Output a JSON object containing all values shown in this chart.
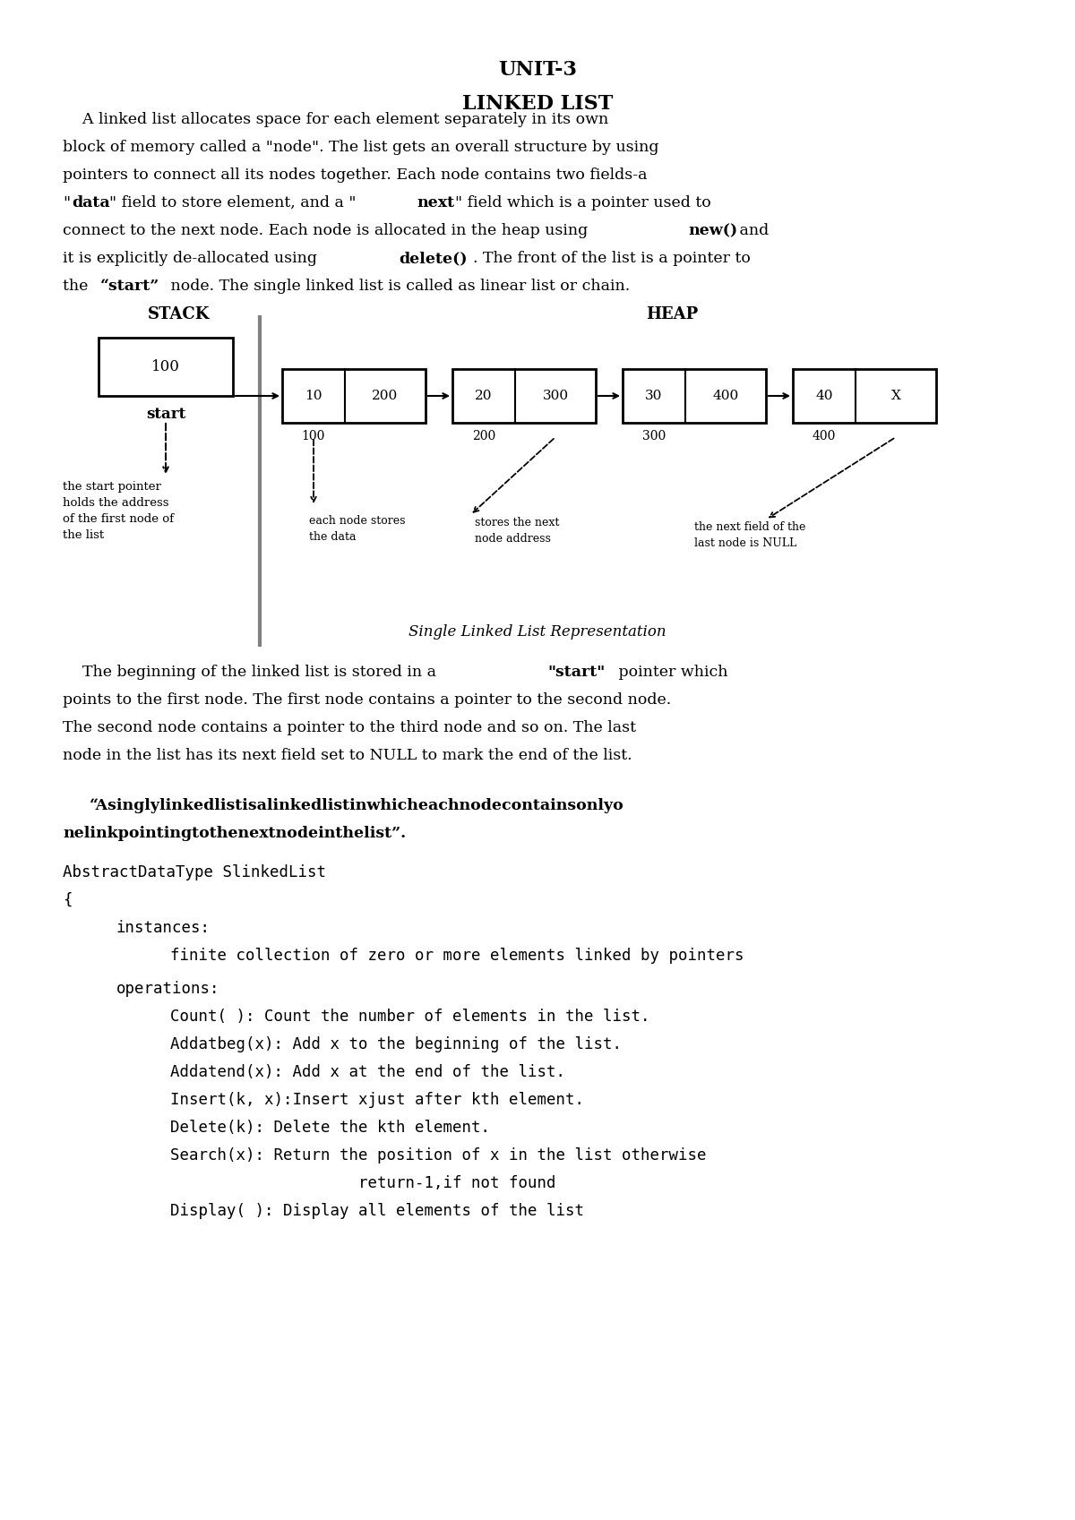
{
  "title1": "UNIT-3",
  "title2": "LINKED LIST",
  "para1": "A linked list allocates space for each element separately in its own block of memory called a \"node\". The list gets an overall structure by using pointers to connect all its nodes together. Each node contains two fields-a \"data\" field to store element, and a \"next\" field which is a pointer used to connect to the next node. Each node is allocated in the heap using new() and it is explicitly de-allocated using delete(). The front of the list is a pointer to the \"“start”\" node. The single linked list is called as linear list or chain.",
  "stack_label": "STACK",
  "heap_label": "HEAP",
  "stack_box_val": "100",
  "start_label": "start",
  "nodes": [
    {
      "data": "10",
      "next": "200"
    },
    {
      "data": "20",
      "next": "300"
    },
    {
      "data": "30",
      "next": "400"
    },
    {
      "data": "40",
      "next": "X"
    }
  ],
  "node_addresses": [
    "100",
    "200",
    "300",
    "400"
  ],
  "annotation_start": "the start pointer\nholds the address\nof the first node of\nthe list",
  "annotation_node1": "each node stores\nthe data",
  "annotation_node2": "stores the next\nnode address",
  "annotation_last": "the next field of the\nlast node is NULL",
  "diagram_caption": "Single Linked List Representation",
  "para2": "The beginning of the linked list is stored in a \"start\" pointer which points to the first node. The first node contains a pointer to the second node. The second node contains a pointer to the third node and so on. The last node in the list has its next field set to NULL to mark the end of the list.",
  "quote": "“Asinglylinkedlistisalinkedlistinwhicheachnodecontainsonlyo\nnelinkpointingtothenextnodeinthelist”.",
  "adt_line1": "AbstractDataType SlinkedList",
  "adt_line2": "{",
  "instances_label": "instances:",
  "instances_val": "finite collection of zero or more elements linked by pointers",
  "operations_label": "operations:",
  "ops": [
    "Count( ): Count the number of elements in the list.",
    "Addatbeg(x): Add x to the beginning of the list.",
    "Addatend(x): Add x at the end of the list.",
    "Insert(k, x):Insert xjust after kth element.",
    "Delete(k): Delete the kth element.",
    "Search(x): Return the position of x in the list otherwise",
    "                    return-1,if not found",
    "Display( ): Display all elements of the list"
  ],
  "bg_color": "#ffffff",
  "text_color": "#000000"
}
